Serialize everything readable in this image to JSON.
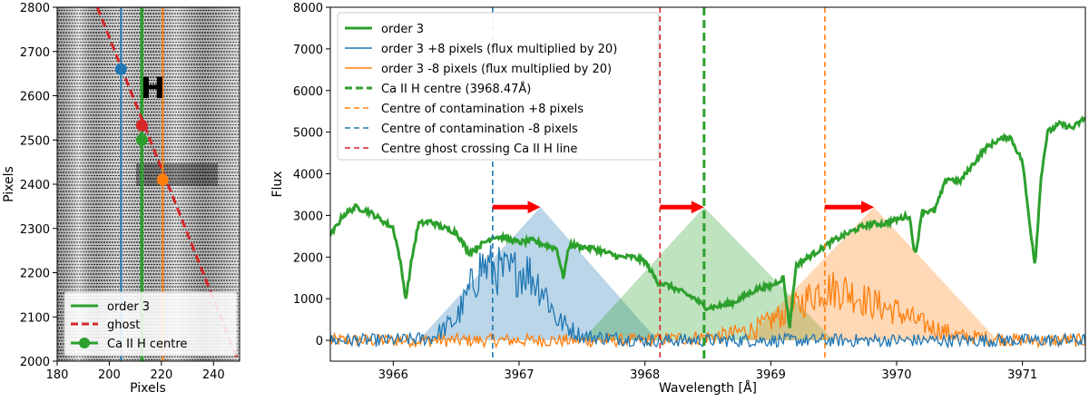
{
  "chart_data": [
    {
      "type": "line",
      "panel": "left",
      "xlabel": "Pixels",
      "ylabel": "Pixels",
      "xlim": [
        180,
        250
      ],
      "ylim": [
        2000,
        2800
      ],
      "xticks": [
        180,
        200,
        220,
        240
      ],
      "yticks": [
        2000,
        2100,
        2200,
        2300,
        2400,
        2500,
        2600,
        2700,
        2800
      ],
      "annotation": "H",
      "series": [
        {
          "name": "order 3",
          "color": "#2ca02c",
          "x": [
            212.5,
            212.5
          ],
          "y": [
            2000,
            2800
          ]
        },
        {
          "name": "ghost",
          "color": "#d62728",
          "x": [
            195.4,
            249.5
          ],
          "y": [
            2800,
            2000
          ]
        },
        {
          "name": "order 3 +8 pixels",
          "color": "#1f77b4",
          "x": [
            204.5,
            204.5
          ],
          "y": [
            2000,
            2800
          ]
        },
        {
          "name": "order 3 -8 pixels",
          "color": "#ff7f0e",
          "x": [
            220.5,
            220.5
          ],
          "y": [
            2000,
            2800
          ]
        }
      ],
      "points": [
        {
          "name": "Ca II H centre",
          "color": "#2ca02c",
          "x": 212.5,
          "y": 2500
        },
        {
          "name": "ghost crossing",
          "color": "#d62728",
          "x": 212.5,
          "y": 2533
        },
        {
          "name": "contamination +8",
          "color": "#1f77b4",
          "x": 204.5,
          "y": 2660
        },
        {
          "name": "contamination -8",
          "color": "#ff7f0e",
          "x": 220.5,
          "y": 2410
        }
      ],
      "legend": [
        {
          "label": "order 3",
          "color": "#2ca02c",
          "style": "solid"
        },
        {
          "label": "ghost",
          "color": "#d62728",
          "style": "dashed"
        },
        {
          "label": "Ca II H centre",
          "color": "#2ca02c",
          "style": "marker"
        }
      ],
      "legend_position": "lower-left"
    },
    {
      "type": "line",
      "panel": "right",
      "xlabel": "Wavelength [Å]",
      "ylabel": "Flux",
      "xlim": [
        3965.5,
        3971.5
      ],
      "ylim": [
        -500,
        8000
      ],
      "xticks": [
        3966,
        3967,
        3968,
        3969,
        3970,
        3971
      ],
      "yticks": [
        0,
        1000,
        2000,
        3000,
        4000,
        5000,
        6000,
        7000,
        8000
      ],
      "series": [
        {
          "name": "order 3",
          "color": "#2ca02c",
          "x": [
            3965.5,
            3965.6,
            3965.7,
            3965.8,
            3965.9,
            3966.0,
            3966.05,
            3966.1,
            3966.15,
            3966.2,
            3966.3,
            3966.4,
            3966.5,
            3966.6,
            3966.7,
            3966.8,
            3966.9,
            3967.0,
            3967.1,
            3967.2,
            3967.3,
            3967.35,
            3967.4,
            3967.5,
            3967.6,
            3967.7,
            3967.8,
            3967.9,
            3968.0,
            3968.1,
            3968.2,
            3968.3,
            3968.4,
            3968.47,
            3968.55,
            3968.7,
            3968.9,
            3969.0,
            3969.1,
            3969.15,
            3969.2,
            3969.3,
            3969.4,
            3969.5,
            3969.6,
            3969.7,
            3969.8,
            3969.9,
            3970.0,
            3970.1,
            3970.15,
            3970.2,
            3970.3,
            3970.4,
            3970.5,
            3970.6,
            3970.7,
            3970.8,
            3970.9,
            3971.0,
            3971.05,
            3971.1,
            3971.15,
            3971.2,
            3971.3,
            3971.4,
            3971.5
          ],
          "y": [
            2500,
            3000,
            3200,
            3100,
            2900,
            2700,
            2000,
            1000,
            2000,
            2800,
            2850,
            2700,
            2600,
            2100,
            2300,
            2500,
            2450,
            2350,
            2400,
            2300,
            2200,
            1500,
            2300,
            2250,
            2200,
            2100,
            2000,
            2000,
            1900,
            1400,
            1300,
            1150,
            1000,
            800,
            800,
            900,
            1250,
            1300,
            1500,
            300,
            1800,
            2000,
            2200,
            2400,
            2550,
            2700,
            2800,
            2800,
            2900,
            3000,
            2000,
            3100,
            3100,
            3900,
            3800,
            4200,
            4600,
            4800,
            4900,
            4300,
            3000,
            1800,
            4000,
            5000,
            5200,
            5100,
            5350
          ]
        },
        {
          "name": "order 3 +8 pixels (flux multiplied by 20)",
          "color": "#1f77b4",
          "x": [
            3965.5,
            3966.0,
            3966.3,
            3966.5,
            3966.7,
            3966.9,
            3967.05,
            3967.2,
            3967.3,
            3967.5,
            3968.0,
            3969.0,
            3970.0,
            3971.5
          ],
          "y": [
            0,
            0,
            50,
            500,
            1800,
            1600,
            1700,
            1200,
            500,
            100,
            0,
            0,
            0,
            0
          ]
        },
        {
          "name": "order 3 -8 pixels (flux multiplied by 20)",
          "color": "#ff7f0e",
          "x": [
            3965.5,
            3966.0,
            3967.0,
            3968.0,
            3968.6,
            3968.9,
            3969.2,
            3969.4,
            3969.6,
            3969.8,
            3970.0,
            3970.2,
            3970.5,
            3971.0,
            3971.5
          ],
          "y": [
            0,
            0,
            0,
            0,
            100,
            300,
            800,
            1250,
            1200,
            900,
            700,
            400,
            100,
            0,
            0
          ]
        }
      ],
      "vlines": [
        {
          "name": "Ca II H centre (3968.47Å)",
          "color": "#2ca02c",
          "x": 3968.47
        },
        {
          "name": "Centre of contamination +8 pixels",
          "color": "#ff7f0e",
          "x": 3969.43
        },
        {
          "name": "Centre of contamination -8 pixels",
          "color": "#1f77b4",
          "x": 3966.79
        },
        {
          "name": "Centre ghost crossing Ca II H line",
          "color": "#d62728",
          "x": 3968.12
        }
      ],
      "triangles": [
        {
          "color": "#1f77b4",
          "left": 3966.2,
          "apex": 3967.17,
          "right": 3968.1,
          "peak": 3200
        },
        {
          "color": "#2ca02c",
          "left": 3967.5,
          "apex": 3968.47,
          "right": 3969.5,
          "peak": 3200
        },
        {
          "color": "#ff7f0e",
          "left": 3968.8,
          "apex": 3969.82,
          "right": 3970.8,
          "peak": 3200
        }
      ],
      "arrows": [
        {
          "color": "#ff0000",
          "x_start": 3966.79,
          "x_end": 3967.17,
          "y": 3200
        },
        {
          "color": "#ff0000",
          "x_start": 3968.12,
          "x_end": 3968.47,
          "y": 3200
        },
        {
          "color": "#ff0000",
          "x_start": 3969.43,
          "x_end": 3969.82,
          "y": 3200
        }
      ],
      "legend": [
        {
          "label": "order 3",
          "color": "#2ca02c",
          "style": "solid-thick"
        },
        {
          "label": "order 3 +8 pixels (flux multiplied by 20)",
          "color": "#1f77b4",
          "style": "solid"
        },
        {
          "label": "order 3 -8 pixels (flux multiplied by 20)",
          "color": "#ff7f0e",
          "style": "solid"
        },
        {
          "label": "Ca II H centre (3968.47Å)",
          "color": "#2ca02c",
          "style": "dashed-thick"
        },
        {
          "label": "Centre of contamination +8 pixels",
          "color": "#ff7f0e",
          "style": "dashed"
        },
        {
          "label": "Centre of contamination -8 pixels",
          "color": "#1f77b4",
          "style": "dashed"
        },
        {
          "label": "Centre ghost crossing Ca II H line",
          "color": "#d62728",
          "style": "dashed"
        }
      ],
      "legend_position": "upper-left"
    }
  ]
}
